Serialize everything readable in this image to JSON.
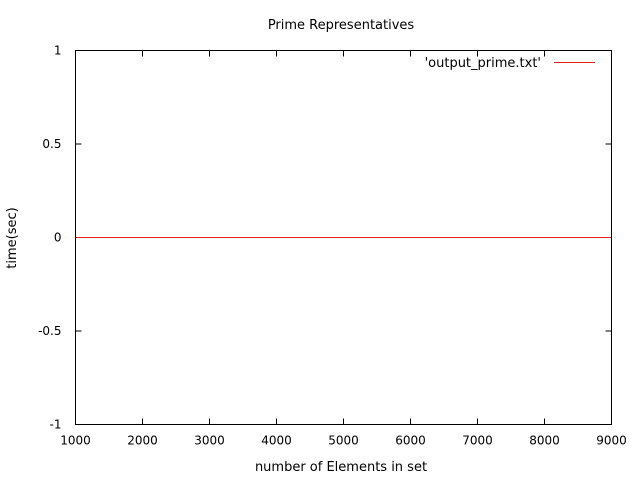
{
  "chart_data": {
    "type": "line",
    "title": "Prime Representatives",
    "xlabel": "number of Elements in set",
    "ylabel": "time(sec)",
    "xlim": [
      1000,
      9000
    ],
    "ylim": [
      -1,
      1
    ],
    "xticks": [
      1000,
      2000,
      3000,
      4000,
      5000,
      6000,
      7000,
      8000,
      9000
    ],
    "yticks": [
      -1,
      -0.5,
      0,
      0.5,
      1
    ],
    "xtick_labels": [
      "1000",
      "2000",
      "3000",
      "4000",
      "5000",
      "6000",
      "7000",
      "8000",
      "9000"
    ],
    "ytick_labels": [
      "-1",
      "-0.5",
      "0",
      "0.5",
      "1"
    ],
    "grid": false,
    "legend_position": "top-right",
    "series": [
      {
        "name": "'output_prime.txt'",
        "color": "#e0201c",
        "x": [
          1000,
          9000
        ],
        "y": [
          0,
          0
        ]
      }
    ]
  }
}
